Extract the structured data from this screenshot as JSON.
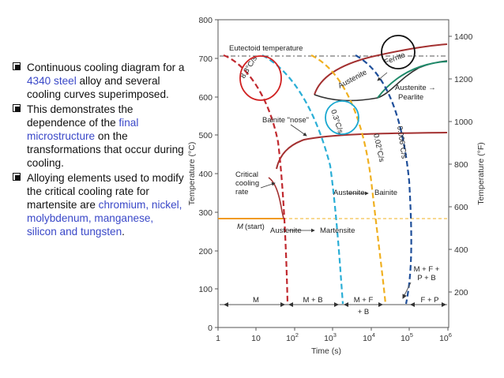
{
  "bullets": [
    {
      "parts": [
        {
          "t": "Continuous cooling diagram for a "
        },
        {
          "t": "4340 steel",
          "hl": true
        },
        {
          "t": " alloy and several cooling curves superimposed."
        }
      ]
    },
    {
      "parts": [
        {
          "t": "This demonstrates the dependence of the "
        },
        {
          "t": "final microstructure",
          "hl": true
        },
        {
          "t": " on the transformations that occur during cooling."
        }
      ]
    },
    {
      "parts": [
        {
          "t": "Alloying elements used to modify the critical cooling rate for martensite are "
        },
        {
          "t": "chromium, nickel, molybdenum, manganese, silicon and tungsten",
          "hl": true
        },
        {
          "t": "."
        }
      ]
    }
  ],
  "diagram": {
    "y_axis_left_label": "Temperature (°C)",
    "y_axis_right_label": "Temperature (°F)",
    "x_axis_label": "Time (s)",
    "y_ticks_c": [
      "800",
      "700",
      "600",
      "500",
      "400",
      "300",
      "200",
      "100",
      "0"
    ],
    "y_ticks_f": [
      "1400",
      "1200",
      "1000",
      "800",
      "600",
      "400",
      "200"
    ],
    "x_ticks": [
      "1",
      "10",
      "10",
      "10",
      "10",
      "10",
      "10"
    ],
    "x_tick_exp": [
      "",
      "",
      "2",
      "3",
      "4",
      "5",
      "6"
    ],
    "labels": {
      "eutectoid": "Eutectoid temperature",
      "ferrite": "Ferrite",
      "austenite_top": "Austenite",
      "austenite_pearlite": "Austenite →",
      "pearlite": "Pearlite",
      "bainite_nose": "Bainite \"nose\"",
      "critical": "Critical",
      "cooling": "cooling",
      "rate": "rate",
      "austenite_bainite": "Austenite",
      "bainite": "Bainite",
      "mstart_m": "M",
      "mstart_rest": "(start)",
      "austenite_martensite": "Austenite",
      "martensite": "Martensite",
      "mfpb1": "M + F +",
      "mfpb2": "P + B",
      "region_m": "M",
      "region_mb": "M + B",
      "region_mf": "M + F",
      "region_b": "+ B",
      "region_fp": "F + P",
      "rate1": "8.3°C/s",
      "rate2": "0.3°C/s",
      "rate3": "0.02°C/s",
      "rate4": "0.006°C/s"
    },
    "colors": {
      "critical_curve": "#c0282e",
      "rate1": "#c0282e",
      "rate2": "#2aaed6",
      "rate3": "#f0b020",
      "rate4": "#1f4f9a",
      "mstart": "#f09a20",
      "transform_curve": "#a33030",
      "pearlite_curve": "#1f8a6a",
      "circle_red": "#d02020",
      "circle_cyan": "#1aa8d0",
      "circle_black": "#111111"
    }
  }
}
